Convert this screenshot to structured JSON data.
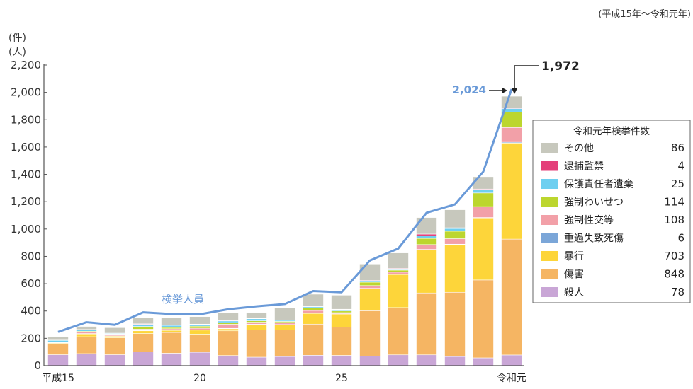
{
  "chart_data": {
    "type": "bar",
    "stacked": true,
    "period_note": "(平成15年～令和元年)",
    "y_units": [
      "(件)",
      "(人)"
    ],
    "ylim": [
      0,
      2200
    ],
    "yticks": [
      "0",
      "200",
      "400",
      "600",
      "800",
      "1,000",
      "1,200",
      "1,400",
      "1,600",
      "1,800",
      "2,000",
      "2,200"
    ],
    "ytick_values": [
      0,
      200,
      400,
      600,
      800,
      1000,
      1200,
      1400,
      1600,
      1800,
      2000,
      2200
    ],
    "categories": [
      "平成15",
      "16",
      "17",
      "18",
      "19",
      "20",
      "21",
      "22",
      "23",
      "24",
      "25",
      "26",
      "27",
      "28",
      "29",
      "30",
      "令和元"
    ],
    "xtick_labels": [
      {
        "index": 0,
        "label": "平成15"
      },
      {
        "index": 5,
        "label": "20"
      },
      {
        "index": 10,
        "label": "25"
      },
      {
        "index": 16,
        "label": "令和元"
      }
    ],
    "series": [
      {
        "name": "殺人",
        "color": "#c9a6d6",
        "values": [
          80,
          88,
          80,
          102,
          91,
          98,
          74,
          62,
          67,
          76,
          75,
          71,
          79,
          79,
          67,
          57,
          78
        ]
      },
      {
        "name": "傷害",
        "color": "#f5b563",
        "values": [
          80,
          124,
          124,
          133,
          152,
          132,
          181,
          199,
          194,
          228,
          208,
          331,
          346,
          453,
          470,
          570,
          848
        ]
      },
      {
        "name": "暴行",
        "color": "#fdd53a",
        "values": [
          5,
          20,
          12,
          20,
          15,
          30,
          15,
          40,
          38,
          78,
          95,
          161,
          242,
          316,
          349,
          454,
          703
        ]
      },
      {
        "name": "重過失致死傷",
        "color": "#7ba6d8",
        "values": [
          2,
          3,
          2,
          2,
          2,
          2,
          3,
          2,
          2,
          2,
          2,
          3,
          2,
          3,
          3,
          3,
          6
        ]
      },
      {
        "name": "強制性交等",
        "color": "#f2a0a8",
        "values": [
          3,
          12,
          10,
          10,
          10,
          12,
          30,
          15,
          15,
          20,
          8,
          20,
          15,
          35,
          40,
          80,
          108
        ]
      },
      {
        "name": "強制わいせつ",
        "color": "#bcd62e",
        "values": [
          3,
          5,
          3,
          20,
          10,
          15,
          12,
          10,
          8,
          20,
          12,
          25,
          15,
          45,
          55,
          100,
          114
        ]
      },
      {
        "name": "保護責任者遺棄",
        "color": "#6ecff0",
        "values": [
          12,
          10,
          5,
          15,
          15,
          12,
          12,
          15,
          8,
          8,
          10,
          8,
          5,
          20,
          20,
          25,
          25
        ]
      },
      {
        "name": "逮捕監禁",
        "color": "#e4407a",
        "values": [
          2,
          3,
          2,
          4,
          3,
          3,
          4,
          3,
          3,
          3,
          3,
          5,
          8,
          12,
          5,
          4,
          4
        ]
      },
      {
        "name": "その他",
        "color": "#c7c8bd",
        "values": [
          27,
          22,
          40,
          45,
          53,
          55,
          56,
          44,
          86,
          88,
          103,
          120,
          113,
          121,
          132,
          90,
          86
        ]
      }
    ],
    "line": {
      "name": "検挙人員",
      "color": "#6a9ad8",
      "values": [
        247,
        318,
        299,
        390,
        378,
        376,
        413,
        434,
        451,
        546,
        537,
        770,
        857,
        1119,
        1180,
        1420,
        2024
      ]
    },
    "annotations": {
      "line_last": "2,024",
      "bar_last_total": "1,972"
    },
    "legend": {
      "title": "令和元年検挙件数",
      "position": "right",
      "items": [
        {
          "label": "その他",
          "value": "86",
          "color": "#c7c8bd"
        },
        {
          "label": "逮捕監禁",
          "value": "4",
          "color": "#e4407a"
        },
        {
          "label": "保護責任者遺棄",
          "value": "25",
          "color": "#6ecff0"
        },
        {
          "label": "強制わいせつ",
          "value": "114",
          "color": "#bcd62e"
        },
        {
          "label": "強制性交等",
          "value": "108",
          "color": "#f2a0a8"
        },
        {
          "label": "重過失致死傷",
          "value": "6",
          "color": "#7ba6d8"
        },
        {
          "label": "暴行",
          "value": "703",
          "color": "#fdd53a"
        },
        {
          "label": "傷害",
          "value": "848",
          "color": "#f5b563"
        },
        {
          "label": "殺人",
          "value": "78",
          "color": "#c9a6d6"
        }
      ]
    }
  }
}
